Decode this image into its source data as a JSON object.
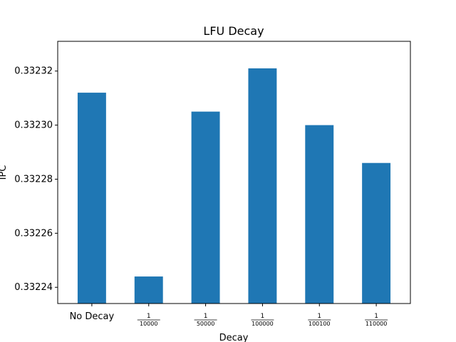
{
  "chart_data": {
    "type": "bar",
    "title": "LFU Decay",
    "xlabel": "Decay",
    "ylabel": "IPC",
    "categories": [
      {
        "label": "No Decay"
      },
      {
        "numerator": "1",
        "denominator": "10000"
      },
      {
        "numerator": "1",
        "denominator": "50000"
      },
      {
        "numerator": "1",
        "denominator": "100000"
      },
      {
        "numerator": "1",
        "denominator": "100100"
      },
      {
        "numerator": "1",
        "denominator": "110000"
      }
    ],
    "values": [
      0.332312,
      0.332244,
      0.332305,
      0.332321,
      0.3323,
      0.332286
    ],
    "ylim": [
      0.332234,
      0.332331
    ],
    "yticks": [
      0.33224,
      0.33226,
      0.33228,
      0.3323,
      0.33232
    ],
    "ytick_labels": [
      "0.33224",
      "0.33226",
      "0.33228",
      "0.33230",
      "0.33232"
    ],
    "bar_color": "#1f77b4",
    "grid": false,
    "legend": "none"
  }
}
